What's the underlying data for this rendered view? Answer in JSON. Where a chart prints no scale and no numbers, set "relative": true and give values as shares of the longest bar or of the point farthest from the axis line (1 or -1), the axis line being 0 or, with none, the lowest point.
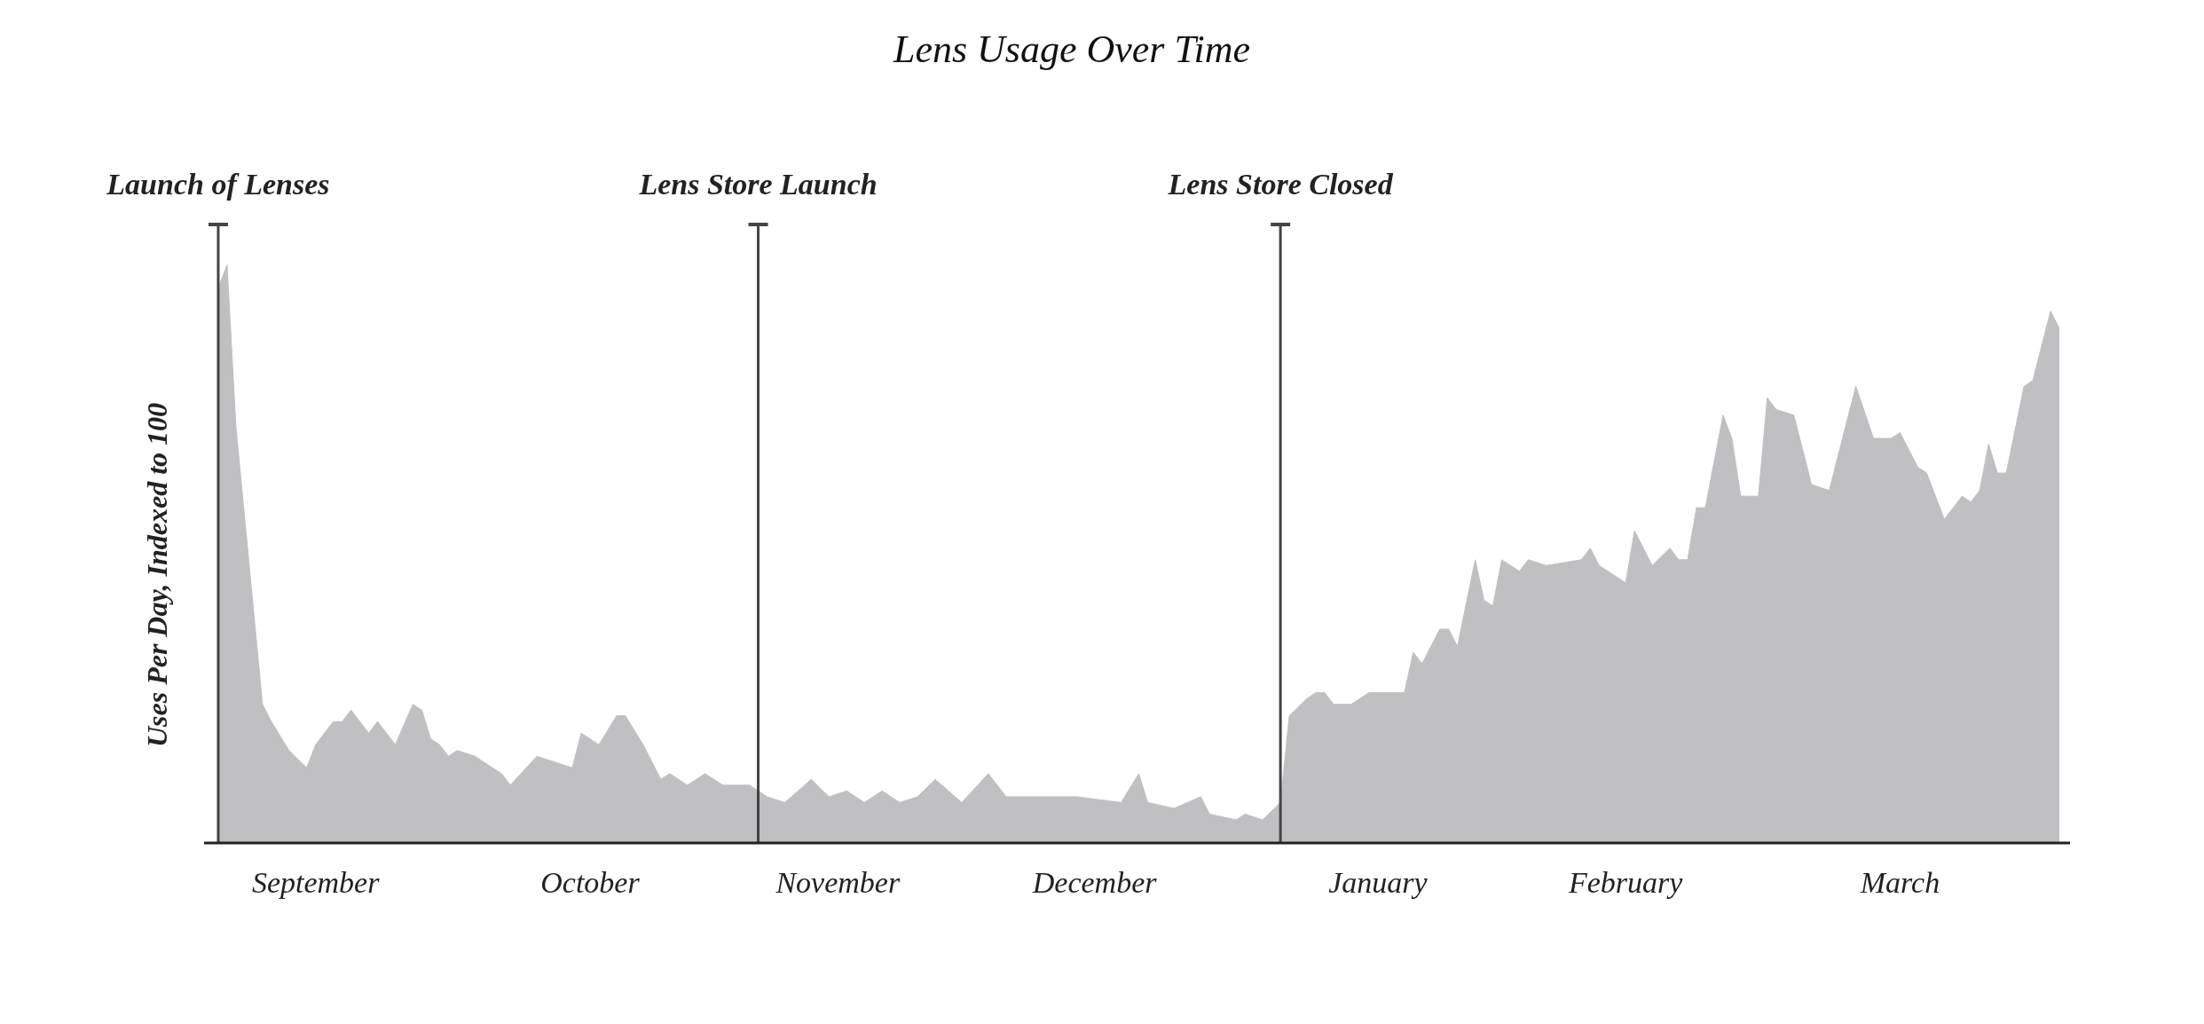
{
  "chart_data": {
    "type": "area",
    "title": "Lens Usage Over Time",
    "ylabel": "Uses Per Day, Indexed to 100",
    "relative": true,
    "grid": false,
    "legend": false,
    "categories": [
      null,
      null,
      null,
      null,
      null,
      null,
      null,
      null,
      null,
      null,
      null,
      "September",
      null,
      null,
      null,
      null,
      null,
      null,
      null,
      null,
      null,
      null,
      null,
      null,
      null,
      null,
      null,
      null,
      null,
      null,
      null,
      null,
      null,
      null,
      null,
      null,
      null,
      null,
      null,
      null,
      null,
      null,
      "October",
      null,
      null,
      null,
      null,
      null,
      null,
      null,
      null,
      null,
      null,
      null,
      null,
      null,
      null,
      null,
      null,
      null,
      null,
      null,
      null,
      null,
      null,
      null,
      null,
      null,
      null,
      null,
      "November",
      null,
      null,
      null,
      null,
      null,
      null,
      null,
      null,
      null,
      null,
      null,
      null,
      null,
      null,
      null,
      null,
      null,
      null,
      null,
      null,
      null,
      null,
      null,
      null,
      null,
      null,
      null,
      null,
      "December",
      null,
      null,
      null,
      null,
      null,
      null,
      null,
      null,
      null,
      null,
      null,
      null,
      null,
      null,
      null,
      null,
      null,
      null,
      null,
      null,
      null,
      null,
      null,
      null,
      null,
      null,
      null,
      null,
      null,
      null,
      null,
      "January",
      null,
      null,
      null,
      null,
      null,
      null,
      null,
      null,
      null,
      null,
      null,
      null,
      null,
      null,
      null,
      null,
      null,
      null,
      null,
      null,
      null,
      null,
      null,
      null,
      null,
      null,
      null,
      "February",
      null,
      null,
      null,
      null,
      null,
      null,
      null,
      null,
      null,
      null,
      null,
      null,
      null,
      null,
      null,
      null,
      null,
      null,
      null,
      null,
      null,
      null,
      null,
      null,
      null,
      null,
      null,
      null,
      null,
      null,
      "March",
      null,
      null,
      null,
      null,
      null,
      null,
      null,
      null,
      null,
      null,
      null,
      null,
      null,
      null,
      null,
      null,
      null,
      null
    ],
    "series": [
      {
        "color": "#c0c0c2",
        "values": [
          0.96,
          1,
          0.72,
          null,
          null,
          0.24,
          0.21,
          null,
          0.16,
          null,
          0.13,
          0.17,
          null,
          0.21,
          0.21,
          0.23,
          null,
          0.19,
          0.21,
          0.19,
          0.17,
          null,
          0.24,
          0.23,
          0.18,
          0.17,
          0.15,
          0.16,
          null,
          0.15,
          null,
          null,
          0.12,
          0.1,
          null,
          null,
          0.15,
          null,
          null,
          null,
          0.13,
          0.19,
          null,
          0.17,
          null,
          0.22,
          0.22,
          null,
          0.17,
          null,
          0.11,
          0.12,
          null,
          0.1,
          null,
          0.12,
          null,
          0.1,
          null,
          0.1,
          0.1,
          null,
          0.08,
          null,
          0.07,
          null,
          null,
          0.11,
          null,
          0.08,
          null,
          0.09,
          null,
          0.07,
          null,
          0.09,
          null,
          0.07,
          null,
          0.08,
          null,
          0.11,
          null,
          null,
          0.07,
          null,
          null,
          0.12,
          null,
          0.08,
          null,
          null,
          0.08,
          null,
          null,
          null,
          null,
          0.08,
          null,
          null,
          null,
          null,
          0.07,
          null,
          0.12,
          0.07,
          null,
          null,
          0.06,
          null,
          null,
          0.08,
          0.05,
          null,
          null,
          0.04,
          0.05,
          null,
          0.04,
          null,
          0.07,
          0.22,
          null,
          0.25,
          0.26,
          0.26,
          0.24,
          null,
          0.24,
          null,
          0.26,
          null,
          null,
          null,
          0.26,
          0.33,
          0.31,
          null,
          0.37,
          0.37,
          0.34,
          null,
          0.49,
          0.42,
          0.41,
          0.49,
          null,
          0.47,
          0.49,
          null,
          0.48,
          null,
          null,
          null,
          0.49,
          0.51,
          0.48,
          null,
          null,
          0.45,
          0.54,
          null,
          0.48,
          null,
          0.51,
          0.49,
          0.49,
          0.58,
          0.58,
          null,
          0.74,
          0.7,
          0.6,
          null,
          0.6,
          0.77,
          0.75,
          null,
          0.74,
          null,
          0.62,
          null,
          0.61,
          0.67,
          null,
          0.79,
          null,
          0.7,
          null,
          0.7,
          0.71,
          null,
          0.65,
          0.64,
          null,
          0.56,
          null,
          0.6,
          0.59,
          0.61,
          0.69,
          0.64,
          0.64,
          null,
          0.79,
          0.8,
          null,
          0.92,
          0.89
        ]
      }
    ],
    "annotations": [
      "Launch of Lenses",
      "Lens Store Launch",
      "Lens Store Closed"
    ]
  }
}
